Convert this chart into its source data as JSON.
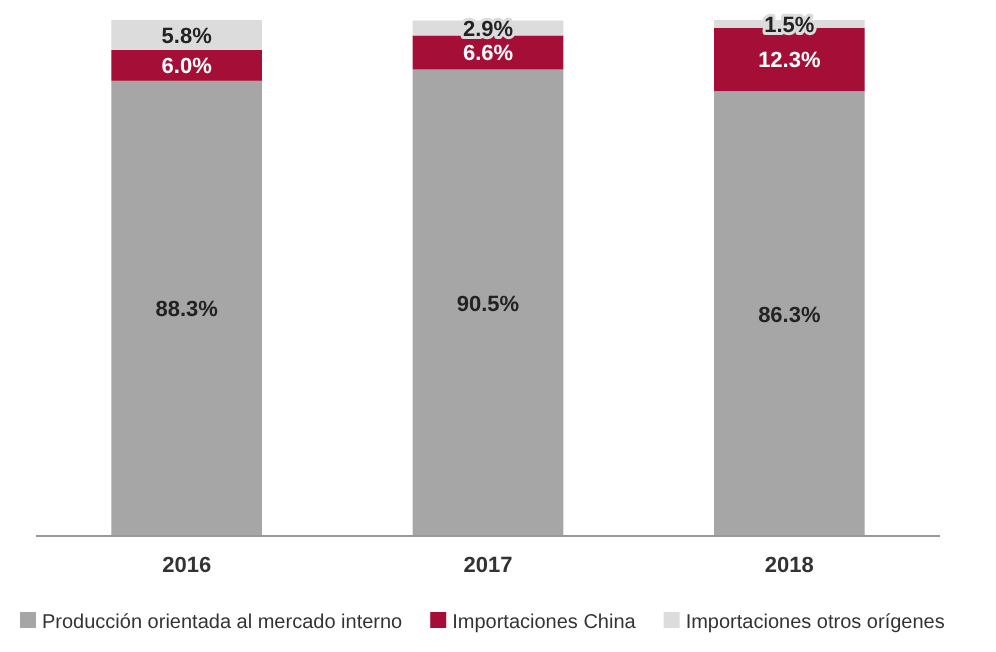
{
  "chart_data": {
    "type": "bar",
    "stacked": true,
    "categories": [
      "2016",
      "2017",
      "2018"
    ],
    "legend": "bottom",
    "series": [
      {
        "name": "Producción orientada al mercado interno",
        "color": "#a6a6a6",
        "values": [
          88.3,
          90.5,
          86.3
        ],
        "value_labels": [
          "88.3%",
          "90.5%",
          "86.3%"
        ]
      },
      {
        "name": "Importaciones China",
        "color": "#a50f37",
        "values": [
          6.0,
          6.6,
          12.3
        ],
        "value_labels": [
          "6.0%",
          "6.6%",
          "12.3%"
        ]
      },
      {
        "name": "Importaciones otros orígenes",
        "color": "#dcdcdc",
        "values": [
          5.8,
          2.9,
          1.5
        ],
        "value_labels": [
          "5.8%",
          "2.9%",
          "1.5%"
        ]
      }
    ]
  }
}
